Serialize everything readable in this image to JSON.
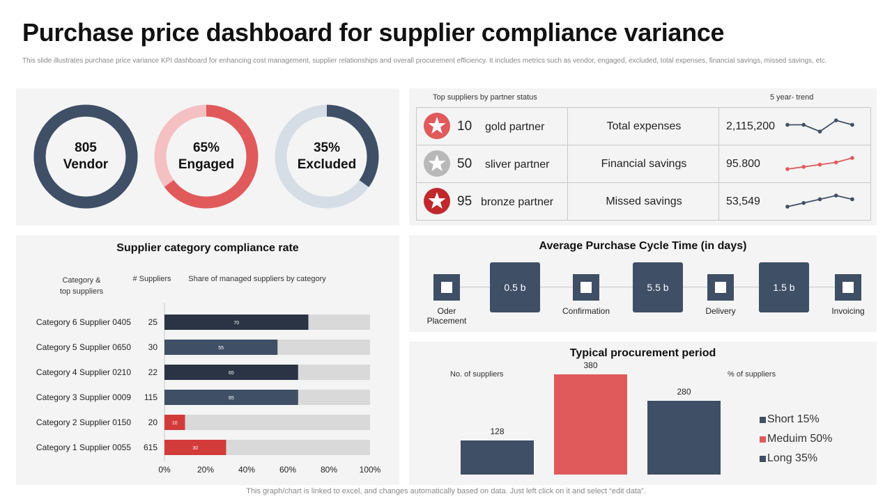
{
  "header": {
    "title": "Purchase price dashboard for supplier compliance variance",
    "subtitle": "This slide illustrates purchase price variance KPI dashboard for enhancing cost management,  supplier relationships and overall procurement efficiency. It includes metrics such as vendor, engaged, excluded, total expenses, financial savings, missed savings, etc."
  },
  "colors": {
    "navy": "#3e4f66",
    "red": "#e05a5c",
    "light_red": "#f4c0c1",
    "light_blue": "#d5dde6",
    "dark_bar": "#2a3444",
    "red_bar": "#d33a3a",
    "track": "#d9d9d9",
    "panel_bg": "#f4f4f4"
  },
  "donuts": [
    {
      "line1": "805",
      "line2": "Vendor",
      "fill_pct": 100,
      "main_color": "#3e4f66",
      "track_color": "#3e4f66"
    },
    {
      "line1": "65%",
      "line2": "Engaged",
      "fill_pct": 65,
      "main_color": "#e05a5c",
      "track_color": "#f4c0c1"
    },
    {
      "line1": "35%",
      "line2": "Excluded",
      "fill_pct": 35,
      "main_color": "#3e4f66",
      "track_color": "#d5dde6"
    }
  ],
  "partner_table": {
    "header_left": "Top suppliers by partner status",
    "header_right": "5 year- trend",
    "rows": [
      {
        "count": "10",
        "partner": "gold partner",
        "badge_color": "#e05a5c",
        "badge_icon": "star-icon",
        "metric": "Total expenses",
        "value": "2,115,200",
        "trend": [
          3,
          3,
          1.5,
          4,
          3
        ],
        "trend_color": "#3e4f66"
      },
      {
        "count": "50",
        "partner": "sliver partner",
        "badge_color": "#b8b8b8",
        "badge_icon": "star-icon",
        "metric": "Financial savings",
        "value": "95.800",
        "trend": [
          1,
          2,
          3,
          4,
          6
        ],
        "trend_color": "#e05a5c"
      },
      {
        "count": "95",
        "partner": "bronze partner",
        "badge_color": "#c0282c",
        "badge_icon": "star-icon",
        "metric": "Missed savings",
        "value": "53,549",
        "trend": [
          1,
          2.5,
          4,
          5.5,
          4
        ],
        "trend_color": "#3e4f66"
      }
    ]
  },
  "compliance": {
    "title": "Supplier category compliance rate",
    "col_category": "Category &\ntop suppliers",
    "col_suppliers": "# Suppliers",
    "col_share": "Share of managed suppliers by category"
  },
  "chart_data": [
    {
      "type": "bar",
      "orientation": "horizontal",
      "title": "Supplier category compliance rate",
      "categories": [
        "Category 6 Supplier 0405",
        "Category 5 Supplier 0650",
        "Category 4 Supplier 0210",
        "Category 3 Supplier 0009",
        "Category 2 Supplier 0150",
        "Category 1 Supplier 0055"
      ],
      "suppliers": [
        "25",
        "30",
        "22",
        "115",
        "20",
        "615"
      ],
      "values": [
        70,
        55,
        65,
        65,
        10,
        30
      ],
      "bar_colors": [
        "#2a3444",
        "#3e4f66",
        "#2a3444",
        "#3e4f66",
        "#d33a3a",
        "#d33a3a"
      ],
      "xlim": [
        0,
        100
      ],
      "xticks": [
        "0%",
        "20%",
        "40%",
        "60%",
        "80%",
        "100%"
      ],
      "grid": false
    },
    {
      "type": "bar",
      "title": "Typical procurement period",
      "ylabel": "No. of suppliers",
      "values": [
        128,
        380,
        280
      ],
      "value_labels": [
        "128",
        "380",
        "280"
      ],
      "series": [
        {
          "name": "Short 15%",
          "value": 128,
          "color": "#3e4f66"
        },
        {
          "name": "Meduim 50%",
          "value": 380,
          "color": "#e05a5c"
        },
        {
          "name": "Long 35%",
          "value": 280,
          "color": "#3e4f66"
        }
      ],
      "legend_title": "% of suppliers",
      "legend_position": "right",
      "ylim": [
        0,
        400
      ]
    }
  ],
  "cycle": {
    "title": "Average Purchase Cycle Time (in days)",
    "steps": [
      "Oder\nPlacement",
      "Confirmation",
      "Delivery",
      "Invoicing"
    ],
    "durations": [
      "0.5 b",
      "5.5 b",
      "1.5 b"
    ]
  },
  "procurement": {
    "title": "Typical procurement period",
    "ylabel": "No. of suppliers",
    "legend_title": "% of suppliers",
    "legend": [
      "Short 15%",
      "Meduim 50%",
      "Long 35%"
    ]
  },
  "footer": "This graph/chart is linked to excel,  and changes automatically based on data. Just left click on it and select “edit data”."
}
